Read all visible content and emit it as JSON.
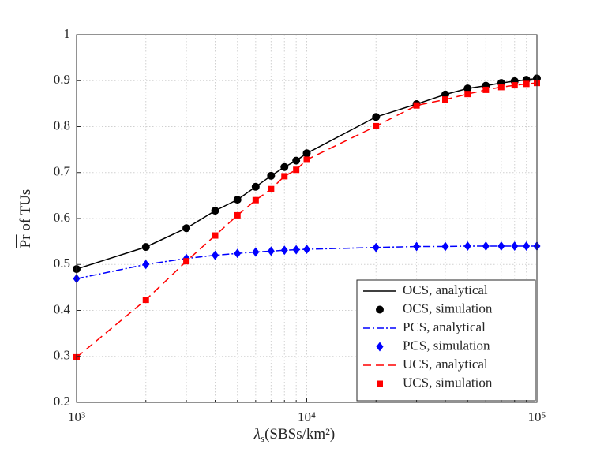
{
  "chart_data": {
    "type": "line",
    "xlabel": [
      "λ",
      "s",
      "(SBSs/km²)"
    ],
    "ylabel": [
      "Pr",
      " of TUs"
    ],
    "x": [
      1000,
      2000,
      3000,
      4000,
      5000,
      6000,
      7000,
      8000,
      9000,
      10000,
      20000,
      30000,
      40000,
      50000,
      60000,
      70000,
      80000,
      90000,
      100000
    ],
    "series": [
      {
        "name": "OCS, analytical",
        "color": "#000000",
        "style": "line",
        "linestyle": "-",
        "values": [
          0.49,
          0.538,
          0.579,
          0.617,
          0.641,
          0.669,
          0.693,
          0.712,
          0.726,
          0.742,
          0.821,
          0.849,
          0.87,
          0.883,
          0.889,
          0.895,
          0.899,
          0.902,
          0.905
        ]
      },
      {
        "name": "OCS, simulation",
        "color": "#000000",
        "style": "marker",
        "marker": "circle",
        "values": [
          0.49,
          0.538,
          0.579,
          0.617,
          0.641,
          0.669,
          0.693,
          0.712,
          0.726,
          0.742,
          0.821,
          0.849,
          0.87,
          0.883,
          0.889,
          0.895,
          0.899,
          0.902,
          0.905
        ]
      },
      {
        "name": "PCS, analytical",
        "color": "#0000ff",
        "style": "line",
        "linestyle": "-.",
        "values": [
          0.469,
          0.5,
          0.513,
          0.52,
          0.524,
          0.527,
          0.529,
          0.531,
          0.532,
          0.533,
          0.537,
          0.539,
          0.539,
          0.54,
          0.54,
          0.54,
          0.54,
          0.54,
          0.54
        ]
      },
      {
        "name": "PCS, simulation",
        "color": "#0000ff",
        "style": "marker",
        "marker": "diamond",
        "values": [
          0.469,
          0.5,
          0.513,
          0.52,
          0.524,
          0.527,
          0.529,
          0.531,
          0.532,
          0.533,
          0.537,
          0.539,
          0.539,
          0.54,
          0.54,
          0.54,
          0.54,
          0.54,
          0.54
        ]
      },
      {
        "name": "UCS, analytical",
        "color": "#ff0000",
        "style": "line",
        "linestyle": "--",
        "values": [
          0.298,
          0.423,
          0.507,
          0.563,
          0.607,
          0.64,
          0.664,
          0.692,
          0.706,
          0.728,
          0.801,
          0.846,
          0.859,
          0.871,
          0.88,
          0.886,
          0.89,
          0.893,
          0.895
        ]
      },
      {
        "name": "UCS, simulation",
        "color": "#ff0000",
        "style": "marker",
        "marker": "square",
        "values": [
          0.298,
          0.423,
          0.507,
          0.563,
          0.607,
          0.64,
          0.664,
          0.692,
          0.706,
          0.728,
          0.801,
          0.846,
          0.859,
          0.871,
          0.88,
          0.886,
          0.89,
          0.893,
          0.895
        ]
      }
    ],
    "xscale": "log",
    "xlim": [
      1000,
      100000
    ],
    "xticks": [
      {
        "value": 1000,
        "label": "10³"
      },
      {
        "value": 10000,
        "label": "10⁴"
      },
      {
        "value": 100000,
        "label": "10⁵"
      }
    ],
    "xminor_ticks": [
      2000,
      3000,
      4000,
      5000,
      6000,
      7000,
      8000,
      9000,
      20000,
      30000,
      40000,
      50000,
      60000,
      70000,
      80000,
      90000
    ],
    "ylim": [
      0.2,
      1
    ],
    "yticks": [
      0.2,
      0.3,
      0.4,
      0.5,
      0.6,
      0.7,
      0.8,
      0.9,
      1
    ],
    "grid": true,
    "legend": "lower right"
  }
}
